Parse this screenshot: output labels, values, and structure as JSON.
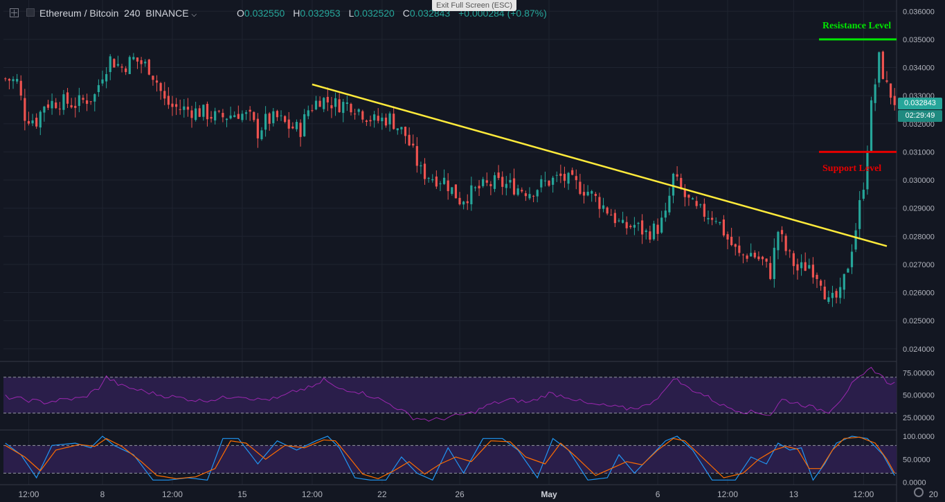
{
  "header": {
    "symbol": "Ethereum / Bitcoin",
    "interval": "240",
    "exchange": "BINANCE",
    "o_label": "O",
    "o_value": "0.032550",
    "h_label": "H",
    "h_value": "0.032953",
    "l_label": "L",
    "l_value": "0.032520",
    "c_label": "C",
    "c_value": "0.032843",
    "change": "+0.000284 (+0.87%)"
  },
  "exit_fullscreen": "Exit Full Screen (ESC)",
  "colors": {
    "up": "#26a69a",
    "down": "#ef5350",
    "trendline": "#ffeb3b",
    "resistance": "#00e600",
    "support": "#e60000",
    "rsi_line": "#9c27b0",
    "stoch_k": "#2196f3",
    "stoch_d": "#ff6d00",
    "band_fill": "#2a1e4a"
  },
  "annotations": {
    "resistance_label": "Resistance Level",
    "support_label": "Support Level"
  },
  "last_price_tag": "0.032843",
  "countdown_tag": "02:29:49",
  "chart_data": {
    "type": "candlestick",
    "title": "",
    "ylim": [
      0.0236,
      0.0364
    ],
    "ytick_labels": [
      "0.036000",
      "0.035000",
      "0.034000",
      "0.033000",
      "0.032000",
      "0.031000",
      "0.030000",
      "0.029000",
      "0.028000",
      "0.027000",
      "0.026000",
      "0.025000",
      "0.024000"
    ],
    "yticks": [
      0.036,
      0.035,
      0.034,
      0.033,
      0.032,
      0.031,
      0.03,
      0.029,
      0.028,
      0.027,
      0.026,
      0.025,
      0.024
    ],
    "xtick_labels": [
      "12:00",
      "8",
      "12:00",
      "15",
      "12:00",
      "22",
      "26",
      "May",
      "6",
      "12:00",
      "13",
      "12:00",
      "20"
    ],
    "x_count": 230,
    "xticks_index": [
      6,
      25,
      43,
      61,
      79,
      97,
      117,
      140,
      168,
      186,
      203,
      221,
      239
    ],
    "close_path": [
      [
        0,
        0.0336
      ],
      [
        3,
        0.0335
      ],
      [
        5,
        0.0323
      ],
      [
        8,
        0.0321
      ],
      [
        10,
        0.0327
      ],
      [
        14,
        0.0328
      ],
      [
        18,
        0.0327
      ],
      [
        23,
        0.033
      ],
      [
        25,
        0.0338
      ],
      [
        27,
        0.0343
      ],
      [
        30,
        0.034
      ],
      [
        33,
        0.0343
      ],
      [
        37,
        0.034
      ],
      [
        39,
        0.0335
      ],
      [
        41,
        0.0328
      ],
      [
        43,
        0.0326
      ],
      [
        47,
        0.0325
      ],
      [
        51,
        0.0324
      ],
      [
        55,
        0.0322
      ],
      [
        60,
        0.0324
      ],
      [
        63,
        0.0322
      ],
      [
        65,
        0.0317
      ],
      [
        67,
        0.0321
      ],
      [
        70,
        0.0322
      ],
      [
        73,
        0.0319
      ],
      [
        76,
        0.0318
      ],
      [
        78,
        0.0325
      ],
      [
        81,
        0.0329
      ],
      [
        85,
        0.0327
      ],
      [
        89,
        0.0327
      ],
      [
        92,
        0.0324
      ],
      [
        95,
        0.0321
      ],
      [
        99,
        0.0322
      ],
      [
        103,
        0.0316
      ],
      [
        107,
        0.0303
      ],
      [
        110,
        0.0301
      ],
      [
        113,
        0.03
      ],
      [
        117,
        0.0293
      ],
      [
        122,
        0.0297
      ],
      [
        126,
        0.0299
      ],
      [
        130,
        0.0298
      ],
      [
        135,
        0.0296
      ],
      [
        139,
        0.0299
      ],
      [
        143,
        0.0301
      ],
      [
        146,
        0.0299
      ],
      [
        150,
        0.0296
      ],
      [
        153,
        0.0292
      ],
      [
        156,
        0.0288
      ],
      [
        159,
        0.0283
      ],
      [
        162,
        0.0284
      ],
      [
        165,
        0.0281
      ],
      [
        168,
        0.0283
      ],
      [
        170,
        0.0287
      ],
      [
        172,
        0.0301
      ],
      [
        175,
        0.0294
      ],
      [
        178,
        0.0289
      ],
      [
        183,
        0.0287
      ],
      [
        186,
        0.0279
      ],
      [
        189,
        0.0273
      ],
      [
        192,
        0.0274
      ],
      [
        195,
        0.0271
      ],
      [
        197,
        0.0267
      ],
      [
        199,
        0.0282
      ],
      [
        201,
        0.0275
      ],
      [
        204,
        0.0268
      ],
      [
        207,
        0.027
      ],
      [
        210,
        0.0265
      ],
      [
        212,
        0.0256
      ],
      [
        215,
        0.0259
      ],
      [
        217,
        0.027
      ],
      [
        219,
        0.0283
      ],
      [
        221,
        0.0299
      ],
      [
        223,
        0.0326
      ],
      [
        225,
        0.0343
      ],
      [
        227,
        0.0333
      ],
      [
        229,
        0.0328
      ]
    ],
    "trendline": [
      [
        0.0334,
        79
      ],
      [
        0.02765,
        227
      ]
    ],
    "resistance_level": 0.035,
    "support_level": 0.031,
    "rsi": {
      "ylim": [
        12,
        86
      ],
      "tick_labels": [
        "75.00000",
        "50.00000",
        "25.00000"
      ],
      "ticks": [
        75,
        50,
        25
      ],
      "band": [
        30,
        70
      ],
      "path": [
        [
          0,
          48
        ],
        [
          5,
          45
        ],
        [
          10,
          42
        ],
        [
          15,
          45
        ],
        [
          20,
          47
        ],
        [
          24,
          58
        ],
        [
          26,
          70
        ],
        [
          30,
          60
        ],
        [
          35,
          55
        ],
        [
          40,
          50
        ],
        [
          45,
          47
        ],
        [
          50,
          44
        ],
        [
          55,
          46
        ],
        [
          60,
          50
        ],
        [
          65,
          45
        ],
        [
          70,
          46
        ],
        [
          75,
          55
        ],
        [
          80,
          60
        ],
        [
          82,
          68
        ],
        [
          85,
          58
        ],
        [
          90,
          55
        ],
        [
          95,
          48
        ],
        [
          100,
          38
        ],
        [
          105,
          25
        ],
        [
          110,
          22
        ],
        [
          115,
          26
        ],
        [
          120,
          30
        ],
        [
          125,
          40
        ],
        [
          130,
          45
        ],
        [
          135,
          42
        ],
        [
          140,
          52
        ],
        [
          145,
          48
        ],
        [
          150,
          40
        ],
        [
          155,
          38
        ],
        [
          160,
          35
        ],
        [
          165,
          38
        ],
        [
          170,
          55
        ],
        [
          172,
          70
        ],
        [
          175,
          60
        ],
        [
          180,
          50
        ],
        [
          185,
          38
        ],
        [
          190,
          32
        ],
        [
          195,
          30
        ],
        [
          197,
          28
        ],
        [
          200,
          45
        ],
        [
          205,
          40
        ],
        [
          208,
          36
        ],
        [
          212,
          32
        ],
        [
          215,
          45
        ],
        [
          218,
          62
        ],
        [
          221,
          72
        ],
        [
          223,
          80
        ],
        [
          225,
          74
        ],
        [
          227,
          65
        ],
        [
          229,
          63
        ]
      ]
    },
    "stoch": {
      "ylim": [
        -5,
        112
      ],
      "tick_labels": [
        "100.0000",
        "50.0000",
        "0.0000"
      ],
      "ticks": [
        100,
        50,
        0
      ],
      "band": [
        20,
        80
      ],
      "k_path": [
        [
          0,
          85
        ],
        [
          4,
          60
        ],
        [
          8,
          10
        ],
        [
          12,
          80
        ],
        [
          18,
          85
        ],
        [
          22,
          75
        ],
        [
          25,
          100
        ],
        [
          28,
          80
        ],
        [
          33,
          60
        ],
        [
          38,
          5
        ],
        [
          42,
          5
        ],
        [
          47,
          10
        ],
        [
          52,
          5
        ],
        [
          56,
          95
        ],
        [
          60,
          95
        ],
        [
          65,
          40
        ],
        [
          70,
          90
        ],
        [
          75,
          70
        ],
        [
          80,
          90
        ],
        [
          83,
          100
        ],
        [
          86,
          75
        ],
        [
          90,
          10
        ],
        [
          94,
          5
        ],
        [
          98,
          5
        ],
        [
          102,
          55
        ],
        [
          106,
          20
        ],
        [
          110,
          5
        ],
        [
          114,
          75
        ],
        [
          118,
          20
        ],
        [
          123,
          95
        ],
        [
          128,
          95
        ],
        [
          132,
          70
        ],
        [
          137,
          10
        ],
        [
          141,
          95
        ],
        [
          145,
          70
        ],
        [
          150,
          5
        ],
        [
          155,
          10
        ],
        [
          158,
          60
        ],
        [
          162,
          20
        ],
        [
          166,
          55
        ],
        [
          170,
          90
        ],
        [
          173,
          100
        ],
        [
          177,
          70
        ],
        [
          182,
          5
        ],
        [
          188,
          5
        ],
        [
          192,
          55
        ],
        [
          196,
          40
        ],
        [
          199,
          85
        ],
        [
          202,
          70
        ],
        [
          205,
          75
        ],
        [
          208,
          5
        ],
        [
          211,
          40
        ],
        [
          214,
          85
        ],
        [
          218,
          100
        ],
        [
          222,
          95
        ],
        [
          226,
          60
        ],
        [
          229,
          15
        ]
      ],
      "d_path": [
        [
          0,
          80
        ],
        [
          5,
          55
        ],
        [
          9,
          25
        ],
        [
          13,
          70
        ],
        [
          19,
          82
        ],
        [
          23,
          78
        ],
        [
          26,
          95
        ],
        [
          30,
          78
        ],
        [
          35,
          45
        ],
        [
          39,
          15
        ],
        [
          44,
          8
        ],
        [
          49,
          12
        ],
        [
          54,
          30
        ],
        [
          58,
          90
        ],
        [
          62,
          85
        ],
        [
          67,
          50
        ],
        [
          72,
          80
        ],
        [
          77,
          75
        ],
        [
          82,
          92
        ],
        [
          85,
          90
        ],
        [
          88,
          60
        ],
        [
          92,
          18
        ],
        [
          96,
          8
        ],
        [
          100,
          25
        ],
        [
          104,
          45
        ],
        [
          108,
          18
        ],
        [
          112,
          40
        ],
        [
          116,
          55
        ],
        [
          120,
          45
        ],
        [
          125,
          90
        ],
        [
          130,
          88
        ],
        [
          134,
          55
        ],
        [
          139,
          40
        ],
        [
          143,
          85
        ],
        [
          147,
          55
        ],
        [
          152,
          15
        ],
        [
          156,
          30
        ],
        [
          160,
          45
        ],
        [
          164,
          38
        ],
        [
          168,
          70
        ],
        [
          172,
          95
        ],
        [
          175,
          90
        ],
        [
          180,
          50
        ],
        [
          185,
          10
        ],
        [
          190,
          20
        ],
        [
          194,
          50
        ],
        [
          198,
          70
        ],
        [
          201,
          78
        ],
        [
          204,
          72
        ],
        [
          207,
          30
        ],
        [
          210,
          30
        ],
        [
          213,
          70
        ],
        [
          216,
          95
        ],
        [
          220,
          98
        ],
        [
          224,
          85
        ],
        [
          227,
          50
        ],
        [
          229,
          20
        ]
      ]
    }
  }
}
